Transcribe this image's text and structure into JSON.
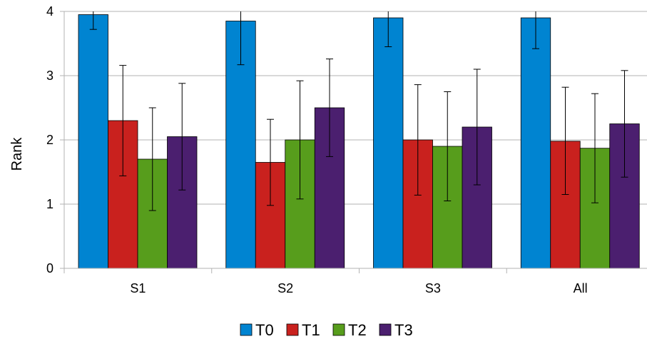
{
  "chart_data": {
    "type": "bar",
    "title": "",
    "xlabel": "",
    "ylabel": "Rank",
    "ylim": [
      0,
      4
    ],
    "yticks": [
      0,
      1,
      2,
      3,
      4
    ],
    "grid": "horizontal",
    "legend_position": "bottom-center",
    "categories": [
      "S1",
      "S2",
      "S3",
      "All"
    ],
    "series": [
      {
        "name": "T0",
        "color": "#0084d1",
        "values": [
          3.95,
          3.85,
          3.9,
          3.9
        ],
        "error_low": [
          3.72,
          3.17,
          3.45,
          3.42
        ],
        "error_high": [
          4.0,
          4.0,
          4.0,
          4.0
        ]
      },
      {
        "name": "T1",
        "color": "#c9211e",
        "values": [
          2.3,
          1.65,
          2.0,
          1.98
        ],
        "error_low": [
          1.44,
          0.98,
          1.14,
          1.15
        ],
        "error_high": [
          3.16,
          2.32,
          2.86,
          2.82
        ]
      },
      {
        "name": "T2",
        "color": "#579d1c",
        "values": [
          1.7,
          2.0,
          1.9,
          1.87
        ],
        "error_low": [
          0.9,
          1.08,
          1.05,
          1.02
        ],
        "error_high": [
          2.5,
          2.92,
          2.75,
          2.72
        ]
      },
      {
        "name": "T3",
        "color": "#4b1f6f",
        "values": [
          2.05,
          2.5,
          2.2,
          2.25
        ],
        "error_low": [
          1.22,
          1.74,
          1.3,
          1.42
        ],
        "error_high": [
          2.88,
          3.26,
          3.1,
          3.08
        ]
      }
    ]
  }
}
